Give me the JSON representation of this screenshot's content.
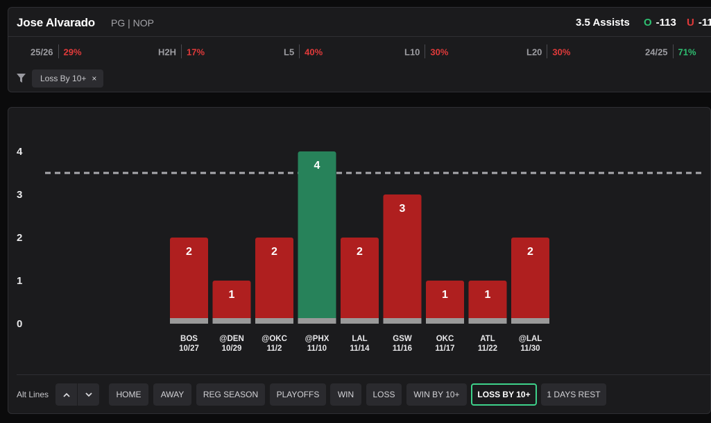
{
  "player": {
    "name": "Jose Alvarado",
    "meta": "PG | NOP"
  },
  "prop": {
    "line": "3.5 Assists",
    "over_label": "O",
    "over_odds": "-113",
    "under_label": "U",
    "under_odds": "-11"
  },
  "stats": [
    {
      "label": "25/26",
      "value": "29%",
      "tone": "red"
    },
    {
      "label": "H2H",
      "value": "17%",
      "tone": "red"
    },
    {
      "label": "L5",
      "value": "40%",
      "tone": "red"
    },
    {
      "label": "L10",
      "value": "30%",
      "tone": "red"
    },
    {
      "label": "L20",
      "value": "30%",
      "tone": "red"
    },
    {
      "label": "24/25",
      "value": "71%",
      "tone": "green"
    }
  ],
  "filter_chip": {
    "label": "Loss By 10+",
    "remove": "×"
  },
  "chart_data": {
    "type": "bar",
    "categories": [
      "BOS",
      "@DEN",
      "@OKC",
      "@PHX",
      "LAL",
      "GSW",
      "OKC",
      "ATL",
      "@LAL"
    ],
    "dates": [
      "10/27",
      "10/29",
      "11/2",
      "11/10",
      "11/14",
      "11/16",
      "11/17",
      "11/22",
      "11/30"
    ],
    "values": [
      2,
      1,
      2,
      4,
      2,
      3,
      1,
      1,
      2
    ],
    "threshold": 3.5,
    "ylim": [
      0,
      4
    ],
    "yticks": [
      "0",
      "1",
      "2",
      "3",
      "4"
    ],
    "colors": {
      "over": "#27825a",
      "under": "#af1f1f",
      "base": "#9a9a9a",
      "line": "#a9a9ad"
    }
  },
  "controls": {
    "alt_lines_label": "Alt Lines",
    "up_icon": "chevron-up-icon",
    "down_icon": "chevron-down-icon",
    "buttons": [
      {
        "label": "HOME",
        "active": false
      },
      {
        "label": "AWAY",
        "active": false
      },
      {
        "label": "REG SEASON",
        "active": false
      },
      {
        "label": "PLAYOFFS",
        "active": false
      },
      {
        "label": "WIN",
        "active": false
      },
      {
        "label": "LOSS",
        "active": false
      },
      {
        "label": "WIN BY 10+",
        "active": false
      },
      {
        "label": "LOSS BY 10+",
        "active": true
      },
      {
        "label": "1 DAYS REST",
        "active": false
      }
    ]
  }
}
